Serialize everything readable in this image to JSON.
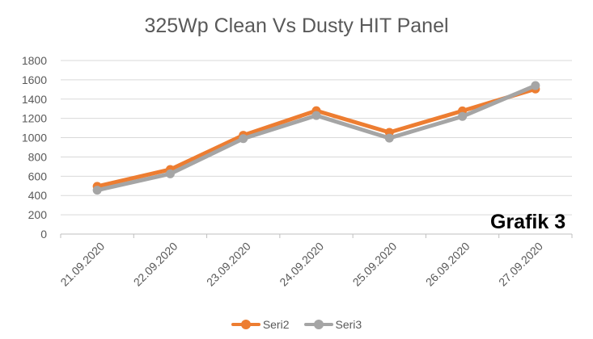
{
  "chart_data": {
    "type": "line",
    "title": "325Wp Clean Vs Dusty HIT Panel",
    "annotation": "Grafik 3",
    "xlabel": "",
    "ylabel": "",
    "categories": [
      "21.09.2020",
      "22.09.2020",
      "23.09.2020",
      "24.09.2020",
      "25.09.2020",
      "26.09.2020",
      "27.09.2020"
    ],
    "ylim": [
      0,
      1800
    ],
    "yticks": [
      "0",
      "200",
      "400",
      "600",
      "800",
      "1000",
      "1200",
      "1400",
      "1600",
      "1800"
    ],
    "grid": true,
    "legend_position": "bottom",
    "series": [
      {
        "name": "Seri2",
        "color": "#ED7D31",
        "values": [
          495,
          670,
          1025,
          1280,
          1055,
          1278,
          1505
        ]
      },
      {
        "name": "Seri3",
        "color": "#A5A5A5",
        "values": [
          455,
          625,
          990,
          1230,
          995,
          1220,
          1540
        ]
      }
    ]
  }
}
